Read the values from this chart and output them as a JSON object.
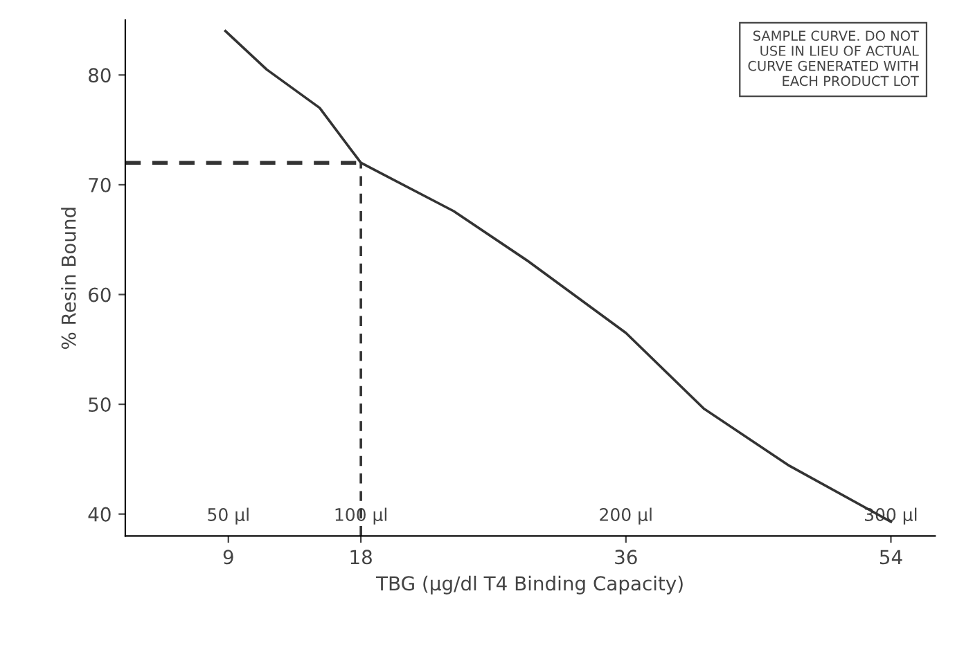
{
  "chart_data": {
    "type": "line",
    "xlabel": "TBG (µg/dl T4 Binding Capacity)",
    "ylabel": "% Resin Bound",
    "x": [
      8.8,
      11.6,
      15.2,
      18,
      24.3,
      29.4,
      36,
      41.3,
      47.1,
      54
    ],
    "series": [
      {
        "color": "#333333",
        "values": [
          84,
          80.5,
          77,
          72,
          67.6,
          63,
          56.5,
          49.6,
          44.4,
          39.3
        ]
      }
    ],
    "xlim": [
      2,
      57
    ],
    "xticks": [
      9,
      18,
      36,
      54
    ],
    "ylim": [
      38,
      85
    ],
    "yticks": [
      40,
      50,
      60,
      70,
      80
    ],
    "grid": false,
    "legend": false,
    "marker": "none",
    "line_style": "solid",
    "ref_lines": [
      {
        "axis": "x",
        "value": 18,
        "label": null,
        "color": "#333333",
        "line_style": "dashed"
      },
      {
        "axis": "y",
        "value": 72,
        "label": null,
        "color": "#333333",
        "line_style": "dashed"
      }
    ],
    "x2lim": [
      11.1,
      316.7
    ],
    "x2ticks": [
      {
        "value": 50,
        "label": "50 µl"
      },
      {
        "value": 100,
        "label": "100 µl"
      },
      {
        "value": 200,
        "label": "200 µl"
      },
      {
        "value": 300,
        "label": "300 µl"
      }
    ],
    "annotations": [
      "SAMPLE CURVE. DO NOT\nUSE IN LIEU OF ACTUAL\nCURVE GENERATED WITH\nEACH PRODUCT LOT"
    ]
  }
}
